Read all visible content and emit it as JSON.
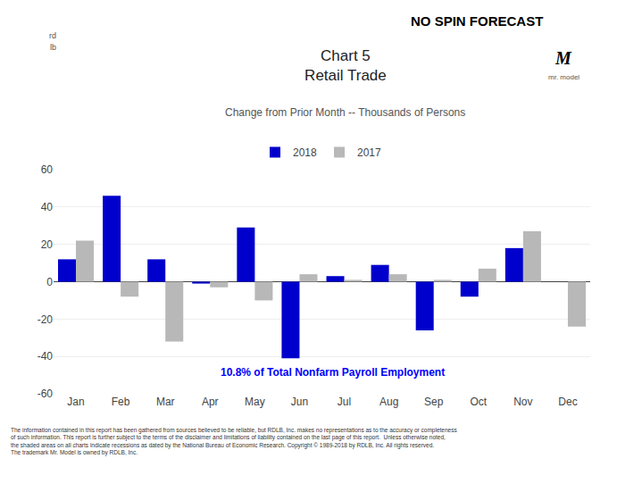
{
  "chart_data": {
    "type": "bar",
    "title": "Chart 5\nRetail Trade",
    "subtitle": "Change from Prior Month -- Thousands of Persons",
    "annotations": [
      "10.8% of Total Nonfarm Payroll Employment",
      "NO SPIN FORECAST",
      "rd",
      "lb",
      "M",
      "mr. model",
      "The information contained in this report has been gathered from sources believed to be reliable, but RDLB, Inc. makes no representations as to the accuracy or completeness\nof such information. This report is further subject to the terms of the disclaimer and limitations of liability contained on the last page of this report.  Unless otherwise noted,\nthe shaded areas on all charts indicate recessions as dated by the National Bureau of Economic Research. Copyright © 1989-2018 by RDLB, Inc. All rights reserved.\nThe trademark Mr. Model is owned by RDLB, Inc."
    ],
    "categories": [
      "Jan",
      "Feb",
      "Mar",
      "Apr",
      "May",
      "Jun",
      "Jul",
      "Aug",
      "Sep",
      "Oct",
      "Nov",
      "Dec"
    ],
    "series": [
      {
        "name": "2018",
        "color": "#0000CC",
        "values": [
          12,
          46,
          12,
          -1,
          29,
          -41,
          3,
          9,
          -26,
          -8,
          18,
          null
        ]
      },
      {
        "name": "2017",
        "color": "#B8B8B8",
        "values": [
          22,
          -8,
          -32,
          -3,
          -10,
          4,
          1,
          4,
          1,
          7,
          27,
          -24
        ]
      }
    ],
    "ylim": [
      -60,
      60
    ],
    "yticks": [
      -60,
      -40,
      -20,
      0,
      20,
      40,
      60
    ],
    "grid": true,
    "legend": "top"
  }
}
